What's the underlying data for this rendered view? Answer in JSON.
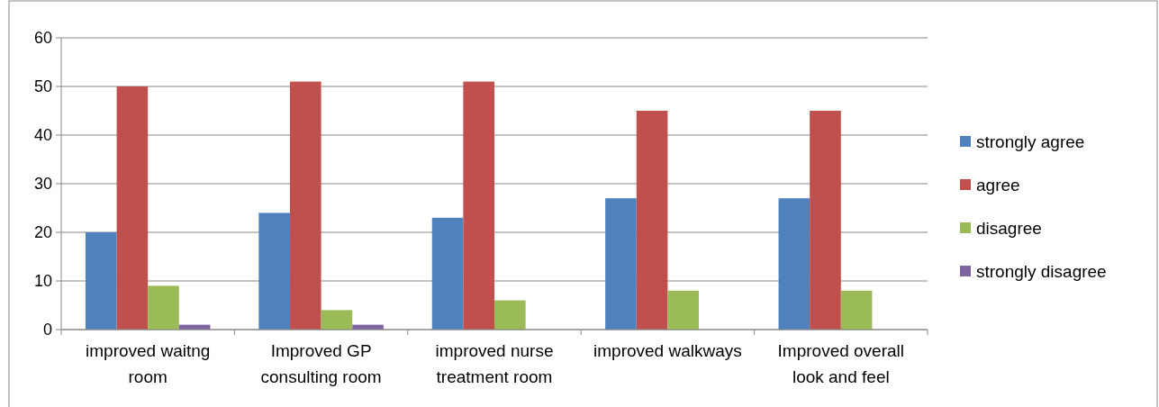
{
  "chart_data": {
    "type": "bar",
    "categories": [
      "improved waitng room",
      "Improved GP consulting room",
      "improved nurse treatment room",
      "improved walkways",
      "Improved overall look and feel"
    ],
    "series": [
      {
        "name": "strongly agree",
        "color": "#4f81bd",
        "values": [
          20,
          24,
          23,
          27,
          27
        ]
      },
      {
        "name": "agree",
        "color": "#c0504d",
        "values": [
          50,
          51,
          51,
          45,
          45
        ]
      },
      {
        "name": "disagree",
        "color": "#9bbb59",
        "values": [
          9,
          4,
          6,
          8,
          8
        ]
      },
      {
        "name": "strongly disagree",
        "color": "#8064a2",
        "values": [
          1,
          1,
          0,
          0,
          0
        ]
      }
    ],
    "ylim": [
      0,
      60
    ],
    "yticks": [
      0,
      10,
      20,
      30,
      40,
      50,
      60
    ],
    "grid": "y",
    "legend": "right"
  }
}
